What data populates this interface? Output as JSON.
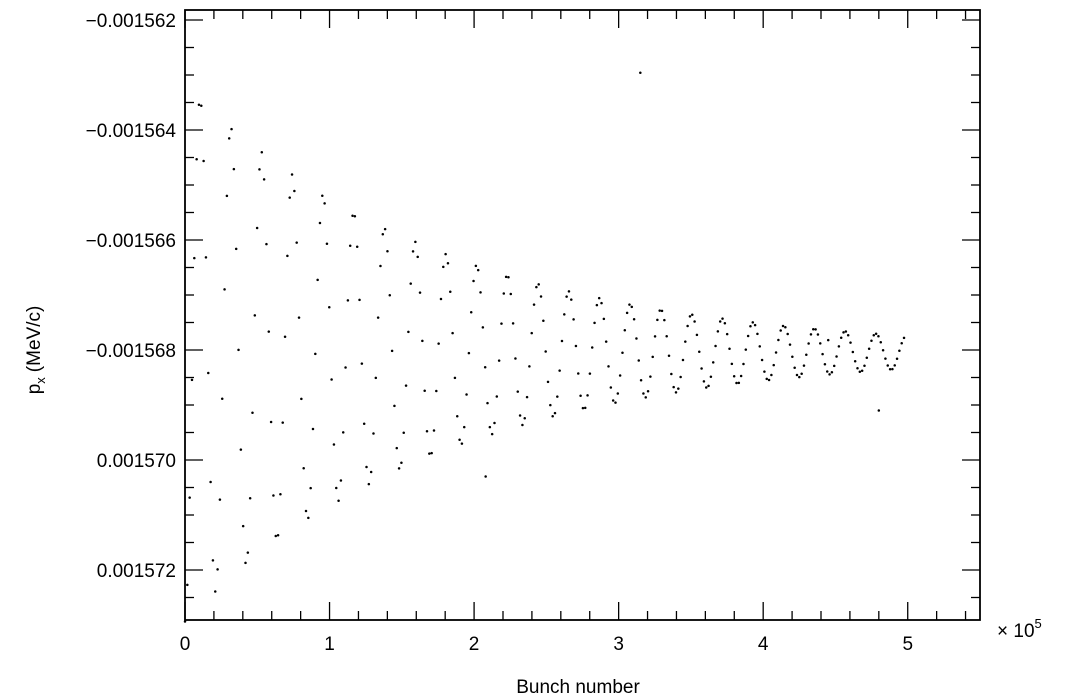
{
  "chart_data": {
    "type": "scatter",
    "title": "",
    "xlabel": "Bunch number",
    "ylabel": {
      "main": "p",
      "sub": "x",
      "units": "(MeV/c)"
    },
    "x_multiplier": {
      "base": "× 10",
      "exp": "5"
    },
    "xlim": [
      0,
      5.5
    ],
    "ylim": [
      -0.001562,
      0.001572
    ],
    "x_ticks": [
      {
        "value": 0,
        "label": "0"
      },
      {
        "value": 1,
        "label": "1"
      },
      {
        "value": 2,
        "label": "2"
      },
      {
        "value": 3,
        "label": "3"
      },
      {
        "value": 4,
        "label": "4"
      },
      {
        "value": 5,
        "label": "5"
      }
    ],
    "y_ticks": [
      {
        "index": 0,
        "label": "-0.001562"
      },
      {
        "index": 1,
        "label": "-0.001564"
      },
      {
        "index": 2,
        "label": "-0.001566"
      },
      {
        "index": 3,
        "label": "-0.001568"
      },
      {
        "index": 4,
        "label": "0.001570"
      },
      {
        "index": 5,
        "label": "0.001572"
      }
    ],
    "grid": false,
    "legend": "none",
    "series": [
      {
        "x_range": [
          0,
          4.98
        ],
        "oscillation_period": 0.2125,
        "initial_amplitude": 2.45,
        "decay_rate": 0.56,
        "mean": 3.02,
        "marker_color": "#000000"
      }
    ],
    "stray_points": [
      {
        "x": 4.45,
        "y": 2.91
      },
      {
        "x": 3.15,
        "y": 0.48
      },
      {
        "x": 4.8,
        "y": 3.55
      },
      {
        "x": 2.08,
        "y": 4.15
      }
    ]
  }
}
